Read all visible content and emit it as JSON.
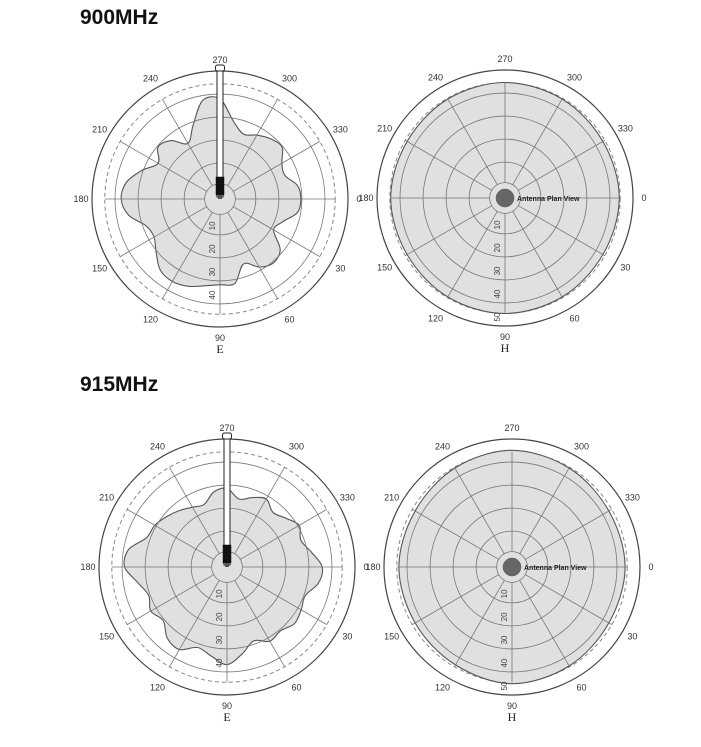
{
  "sections": [
    {
      "title": "900MHz"
    },
    {
      "title": "915MHz"
    }
  ],
  "chart_data": [
    {
      "type": "polar",
      "frequency": "900MHz",
      "plane_label": "E",
      "angle_labels": [
        "0",
        "30",
        "60",
        "90",
        "120",
        "150",
        "180",
        "210",
        "240",
        "270",
        "300",
        "330"
      ],
      "radial_labels": [
        "10",
        "20",
        "30",
        "40"
      ],
      "has_antenna": true,
      "antenna_label": "",
      "colors": {
        "fill": "#e0e0e0",
        "stroke": "#555555",
        "grid": "#777777",
        "dashed": "#888888",
        "antenna_body": "#ffffff",
        "antenna_base": "#111111"
      },
      "pattern": {
        "angles_deg": [
          0,
          10,
          20,
          30,
          40,
          50,
          60,
          70,
          80,
          90,
          100,
          110,
          120,
          130,
          140,
          150,
          160,
          170,
          180,
          190,
          200,
          210,
          220,
          230,
          240,
          250,
          260,
          270,
          280,
          290,
          300,
          310,
          320,
          330,
          340,
          350
        ],
        "radius_norm": [
          0.68,
          0.66,
          0.56,
          0.52,
          0.66,
          0.7,
          0.66,
          0.58,
          0.72,
          0.72,
          0.74,
          0.78,
          0.8,
          0.78,
          0.7,
          0.64,
          0.66,
          0.78,
          0.83,
          0.8,
          0.7,
          0.6,
          0.68,
          0.64,
          0.54,
          0.66,
          0.84,
          0.84,
          0.66,
          0.58,
          0.62,
          0.66,
          0.68,
          0.6,
          0.58,
          0.66
        ]
      }
    },
    {
      "type": "polar",
      "frequency": "900MHz",
      "plane_label": "H",
      "angle_labels": [
        "0",
        "30",
        "60",
        "90",
        "120",
        "150",
        "180",
        "210",
        "240",
        "270",
        "300",
        "330"
      ],
      "radial_labels": [
        "10",
        "20",
        "30",
        "40",
        "50"
      ],
      "has_antenna": false,
      "antenna_label": "Antenna Plan View",
      "colors": {
        "fill": "#e0e0e0",
        "stroke": "#555555",
        "grid": "#777777",
        "dashed": "#888888",
        "antenna_base": "#666666"
      },
      "pattern": {
        "angles_deg": [
          0,
          30,
          60,
          90,
          120,
          150,
          180,
          210,
          240,
          270,
          300,
          330
        ],
        "radius_norm": [
          0.96,
          0.95,
          0.96,
          0.97,
          0.96,
          0.95,
          0.96,
          0.95,
          0.96,
          0.97,
          0.96,
          0.95
        ]
      }
    },
    {
      "type": "polar",
      "frequency": "915MHz",
      "plane_label": "E",
      "angle_labels": [
        "0",
        "30",
        "60",
        "90",
        "120",
        "150",
        "180",
        "210",
        "240",
        "270",
        "300",
        "330"
      ],
      "radial_labels": [
        "10",
        "20",
        "30",
        "40"
      ],
      "has_antenna": true,
      "antenna_label": "",
      "colors": {
        "fill": "#e0e0e0",
        "stroke": "#555555",
        "grid": "#777777",
        "dashed": "#888888",
        "antenna_body": "#ffffff",
        "antenna_base": "#111111"
      },
      "pattern": {
        "angles_deg": [
          0,
          10,
          20,
          30,
          40,
          50,
          60,
          70,
          80,
          90,
          100,
          110,
          120,
          130,
          140,
          150,
          160,
          170,
          180,
          190,
          200,
          210,
          220,
          230,
          240,
          250,
          260,
          270,
          280,
          290,
          300,
          310,
          320,
          330,
          340,
          350
        ],
        "radius_norm": [
          0.8,
          0.78,
          0.7,
          0.72,
          0.74,
          0.7,
          0.72,
          0.66,
          0.74,
          0.82,
          0.76,
          0.72,
          0.8,
          0.78,
          0.7,
          0.74,
          0.7,
          0.76,
          0.86,
          0.84,
          0.72,
          0.7,
          0.66,
          0.62,
          0.58,
          0.56,
          0.64,
          0.66,
          0.58,
          0.62,
          0.66,
          0.6,
          0.64,
          0.7,
          0.66,
          0.72
        ]
      }
    },
    {
      "type": "polar",
      "frequency": "915MHz",
      "plane_label": "H",
      "angle_labels": [
        "0",
        "30",
        "60",
        "90",
        "120",
        "150",
        "180",
        "210",
        "240",
        "270",
        "300",
        "330"
      ],
      "radial_labels": [
        "10",
        "20",
        "30",
        "40",
        "50"
      ],
      "has_antenna": false,
      "antenna_label": "Antenna Plan View",
      "colors": {
        "fill": "#e0e0e0",
        "stroke": "#555555",
        "grid": "#777777",
        "dashed": "#888888",
        "antenna_base": "#666666"
      },
      "pattern": {
        "angles_deg": [
          0,
          30,
          60,
          90,
          120,
          150,
          180,
          210,
          240,
          270,
          300,
          330
        ],
        "radius_norm": [
          0.95,
          0.94,
          0.96,
          0.98,
          0.95,
          0.94,
          0.95,
          0.94,
          0.96,
          0.98,
          0.96,
          0.94
        ]
      }
    }
  ]
}
